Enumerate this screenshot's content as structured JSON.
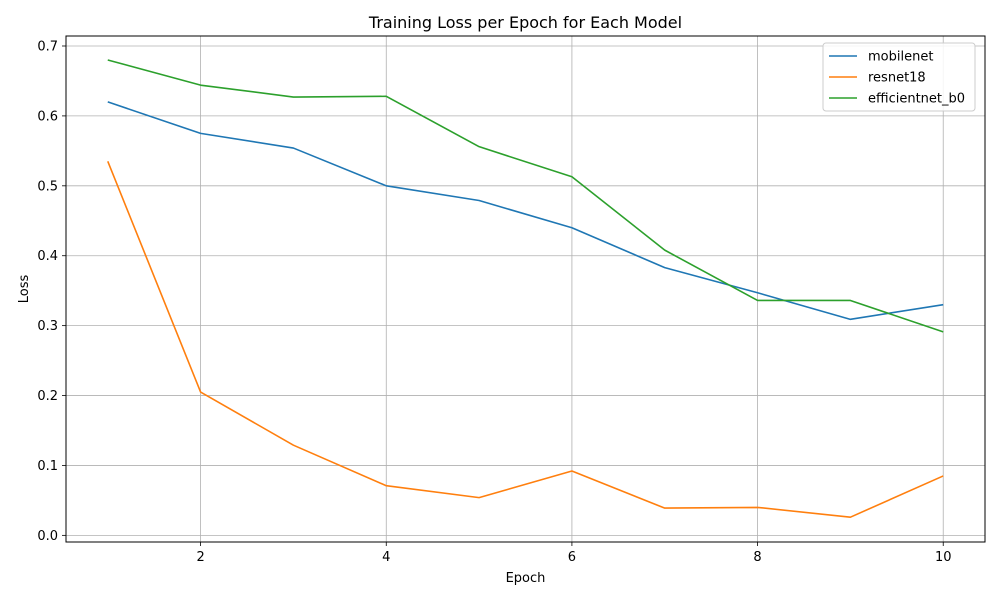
{
  "chart_data": {
    "type": "line",
    "title": "Training Loss per Epoch for Each Model",
    "xlabel": "Epoch",
    "ylabel": "Loss",
    "x": [
      1,
      2,
      3,
      4,
      5,
      6,
      7,
      8,
      9,
      10
    ],
    "xlim": [
      0.55,
      10.45
    ],
    "ylim": [
      -0.0095,
      0.7143
    ],
    "xticks": [
      2,
      4,
      6,
      8,
      10
    ],
    "yticks": [
      0.0,
      0.1,
      0.2,
      0.3,
      0.4,
      0.5,
      0.6,
      0.7
    ],
    "xtick_labels": [
      "2",
      "4",
      "6",
      "8",
      "10"
    ],
    "ytick_labels": [
      "0.0",
      "0.1",
      "0.2",
      "0.3",
      "0.4",
      "0.5",
      "0.6",
      "0.7"
    ],
    "grid": true,
    "legend_position": "top-right",
    "series": [
      {
        "name": "mobilenet",
        "color": "#1f77b4",
        "values": [
          0.62,
          0.575,
          0.554,
          0.5,
          0.479,
          0.44,
          0.383,
          0.347,
          0.309,
          0.33
        ]
      },
      {
        "name": "resnet18",
        "color": "#ff7f0e",
        "values": [
          0.535,
          0.205,
          0.129,
          0.071,
          0.054,
          0.092,
          0.039,
          0.04,
          0.026,
          0.085
        ]
      },
      {
        "name": "efficientnet_b0",
        "color": "#2ca02c",
        "values": [
          0.68,
          0.644,
          0.627,
          0.628,
          0.556,
          0.513,
          0.408,
          0.336,
          0.336,
          0.291
        ]
      }
    ]
  }
}
